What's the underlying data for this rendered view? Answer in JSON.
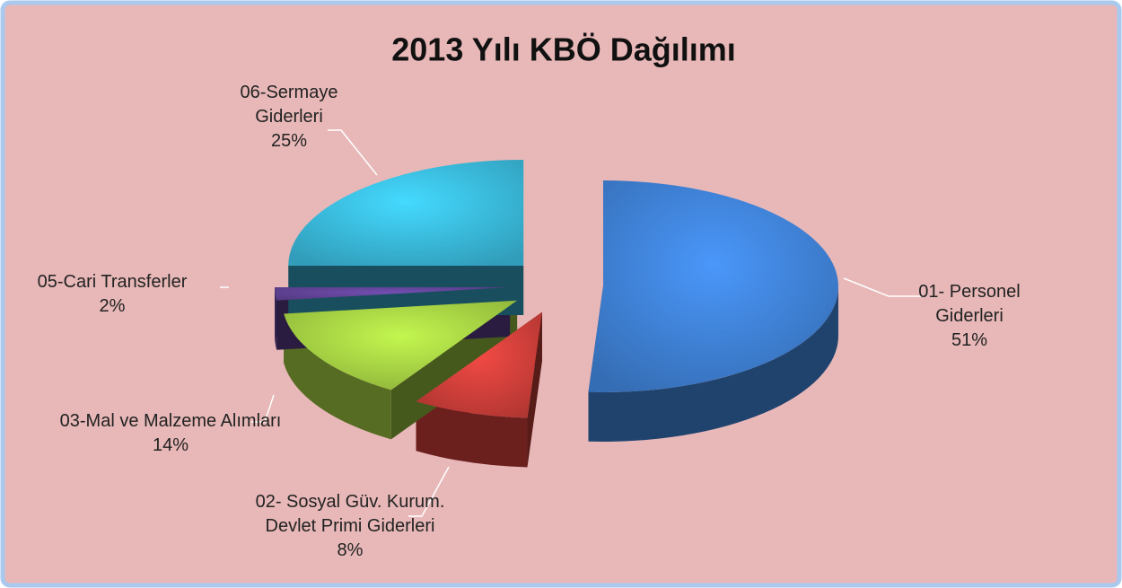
{
  "chart_data": {
    "type": "pie",
    "title": "2013 Yılı KBÖ Dağılımı",
    "categories": [
      "01- Personel Giderleri",
      "02- Sosyal Güv. Kurum. Devlet Primi Giderleri",
      "03-Mal ve Malzeme Alımları",
      "05-Cari Transferler",
      "06-Sermaye Giderleri"
    ],
    "values": [
      51,
      8,
      14,
      2,
      25
    ],
    "value_labels": [
      "51%",
      "8%",
      "14%",
      "2%",
      "25%"
    ],
    "colors": [
      "#3b79c8",
      "#c23b36",
      "#9cc53f",
      "#5c3f8e",
      "#36aecf"
    ]
  }
}
